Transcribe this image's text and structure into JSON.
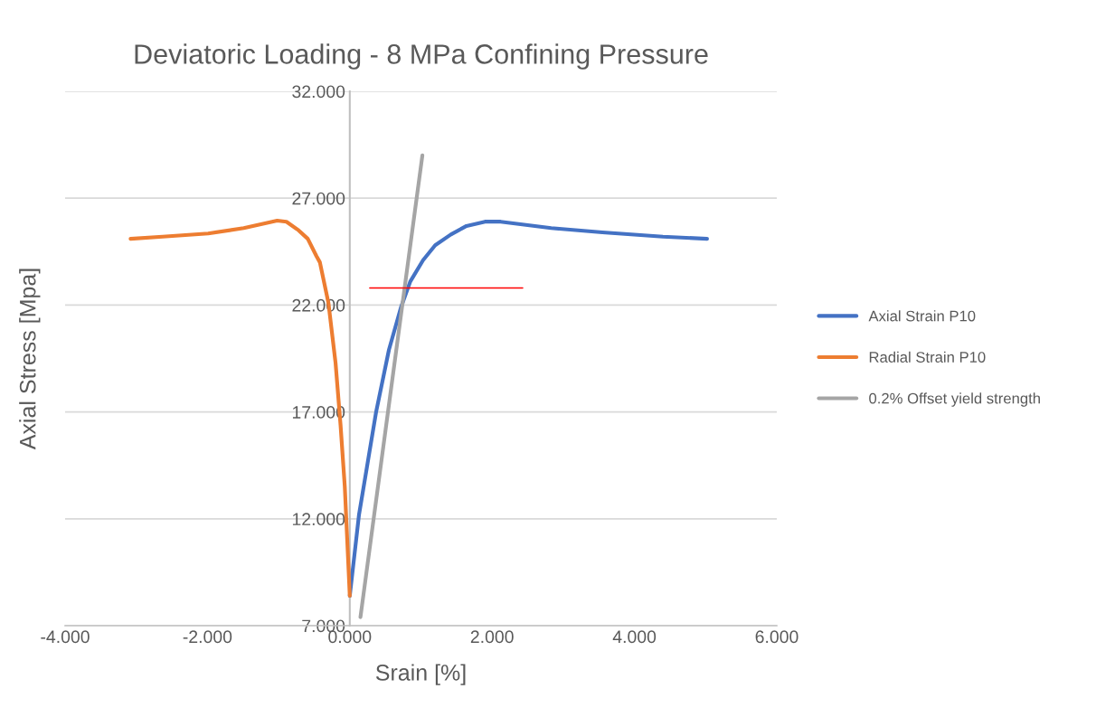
{
  "chart_data": {
    "type": "line",
    "title": "Deviatoric Loading - 8 MPa Confining Pressure",
    "xlabel": "Srain [%]",
    "ylabel": "Axial Stress [Mpa]",
    "xlim": [
      -4,
      6
    ],
    "xticks": [
      {
        "value": -4,
        "label": "-4.000"
      },
      {
        "value": -2,
        "label": "-2.000"
      },
      {
        "value": 0,
        "label": "0.000"
      },
      {
        "value": 2,
        "label": "2.000"
      },
      {
        "value": 4,
        "label": "4.000"
      },
      {
        "value": 6,
        "label": "6.000"
      }
    ],
    "ylim": [
      7,
      32
    ],
    "yticks": [
      {
        "value": 7,
        "label": "7.000"
      },
      {
        "value": 12,
        "label": "12.000"
      },
      {
        "value": 17,
        "label": "17.000"
      },
      {
        "value": 22,
        "label": "22.000"
      },
      {
        "value": 27,
        "label": "27.000"
      },
      {
        "value": 32,
        "label": "32.000"
      }
    ],
    "grid": "y",
    "legend": "right",
    "marker": "none",
    "line_style": "solid",
    "series": [
      {
        "name": "Axial Strain P10",
        "color": "#4472c4",
        "x": [
          0.0,
          0.13,
          0.24,
          0.37,
          0.55,
          0.72,
          0.85,
          1.03,
          1.2,
          1.42,
          1.64,
          1.9,
          2.12,
          2.83,
          3.55,
          4.4,
          5.02
        ],
        "values": [
          8.4,
          12.2,
          14.4,
          17.0,
          19.9,
          21.9,
          23.1,
          24.1,
          24.8,
          25.3,
          25.7,
          25.9,
          25.9,
          25.6,
          25.4,
          25.2,
          25.1
        ]
      },
      {
        "name": "Radial Strain P10",
        "color": "#ed7d31",
        "x": [
          -3.08,
          -2.63,
          -1.99,
          -1.49,
          -1.02,
          -0.89,
          -0.72,
          -0.59,
          -0.47,
          -0.42,
          -0.3,
          -0.2,
          -0.13,
          -0.07,
          0.0
        ],
        "values": [
          25.1,
          25.2,
          25.35,
          25.6,
          25.95,
          25.9,
          25.5,
          25.1,
          24.3,
          24.0,
          22.1,
          19.3,
          16.4,
          13.5,
          8.4
        ]
      },
      {
        "name": "0.2% Offset yield strength",
        "color": "#a5a5a5",
        "x": [
          0.15,
          1.02
        ],
        "values": [
          7.4,
          29.0
        ]
      },
      {
        "color": "#ff0000",
        "x": [
          0.28,
          2.43
        ],
        "values": [
          22.8,
          22.8
        ]
      }
    ]
  }
}
